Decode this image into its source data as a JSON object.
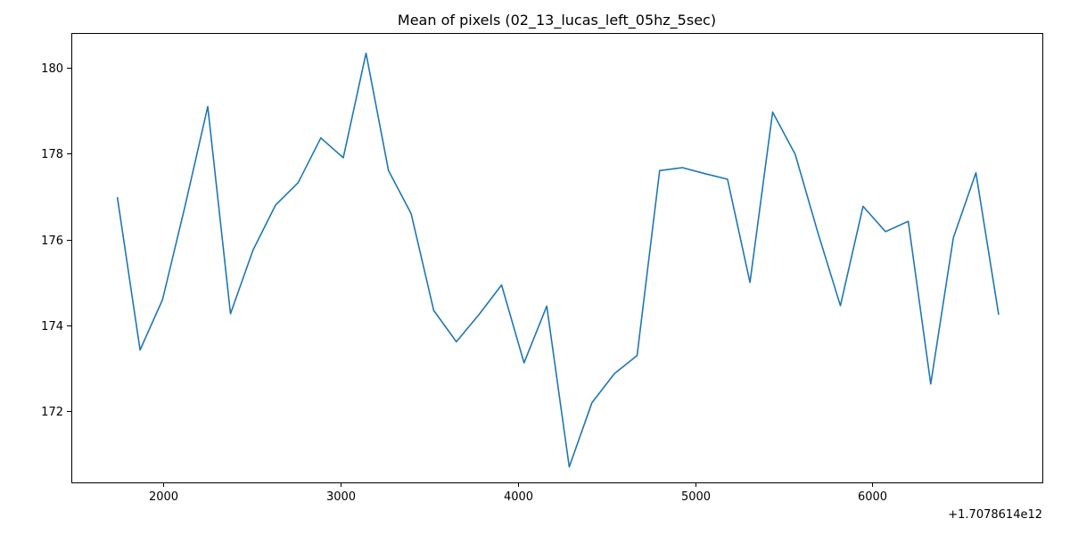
{
  "chart_data": {
    "type": "line",
    "title": "Mean of pixels (02_13_lucas_left_05hz_5sec)",
    "xlabel": "",
    "ylabel": "",
    "x_offset_label": "+1.7078614e12",
    "xlim": [
      1480,
      6960
    ],
    "ylim": [
      170.35,
      180.8
    ],
    "x_ticks": [
      2000,
      3000,
      4000,
      5000,
      6000
    ],
    "x_tick_labels": [
      "2000",
      "3000",
      "4000",
      "5000",
      "6000"
    ],
    "y_ticks": [
      172,
      174,
      176,
      178,
      180
    ],
    "y_tick_labels": [
      "172",
      "174",
      "176",
      "178",
      "180"
    ],
    "grid": false,
    "series": [
      {
        "color": "#1f77b4",
        "x": [
          1740,
          1868,
          1995,
          2123,
          2250,
          2378,
          2505,
          2633,
          2760,
          2888,
          3015,
          3143,
          3270,
          3398,
          3525,
          3653,
          3780,
          3908,
          4035,
          4163,
          4290,
          4418,
          4545,
          4673,
          4800,
          4928,
          5055,
          5183,
          5310,
          5438,
          5565,
          5693,
          5820,
          5948,
          6075,
          6203,
          6330,
          6458,
          6585,
          6713
        ],
        "y": [
          176.97,
          173.43,
          174.6,
          176.8,
          179.09,
          174.27,
          175.75,
          176.8,
          177.32,
          178.36,
          177.9,
          180.33,
          177.6,
          176.6,
          174.35,
          173.62,
          174.25,
          174.94,
          173.13,
          174.45,
          170.71,
          172.2,
          172.88,
          173.3,
          177.6,
          177.67,
          177.53,
          177.4,
          175.0,
          178.96,
          177.98,
          176.16,
          174.46,
          176.77,
          176.18,
          176.42,
          172.64,
          176.04,
          177.55,
          174.26
        ]
      }
    ]
  }
}
